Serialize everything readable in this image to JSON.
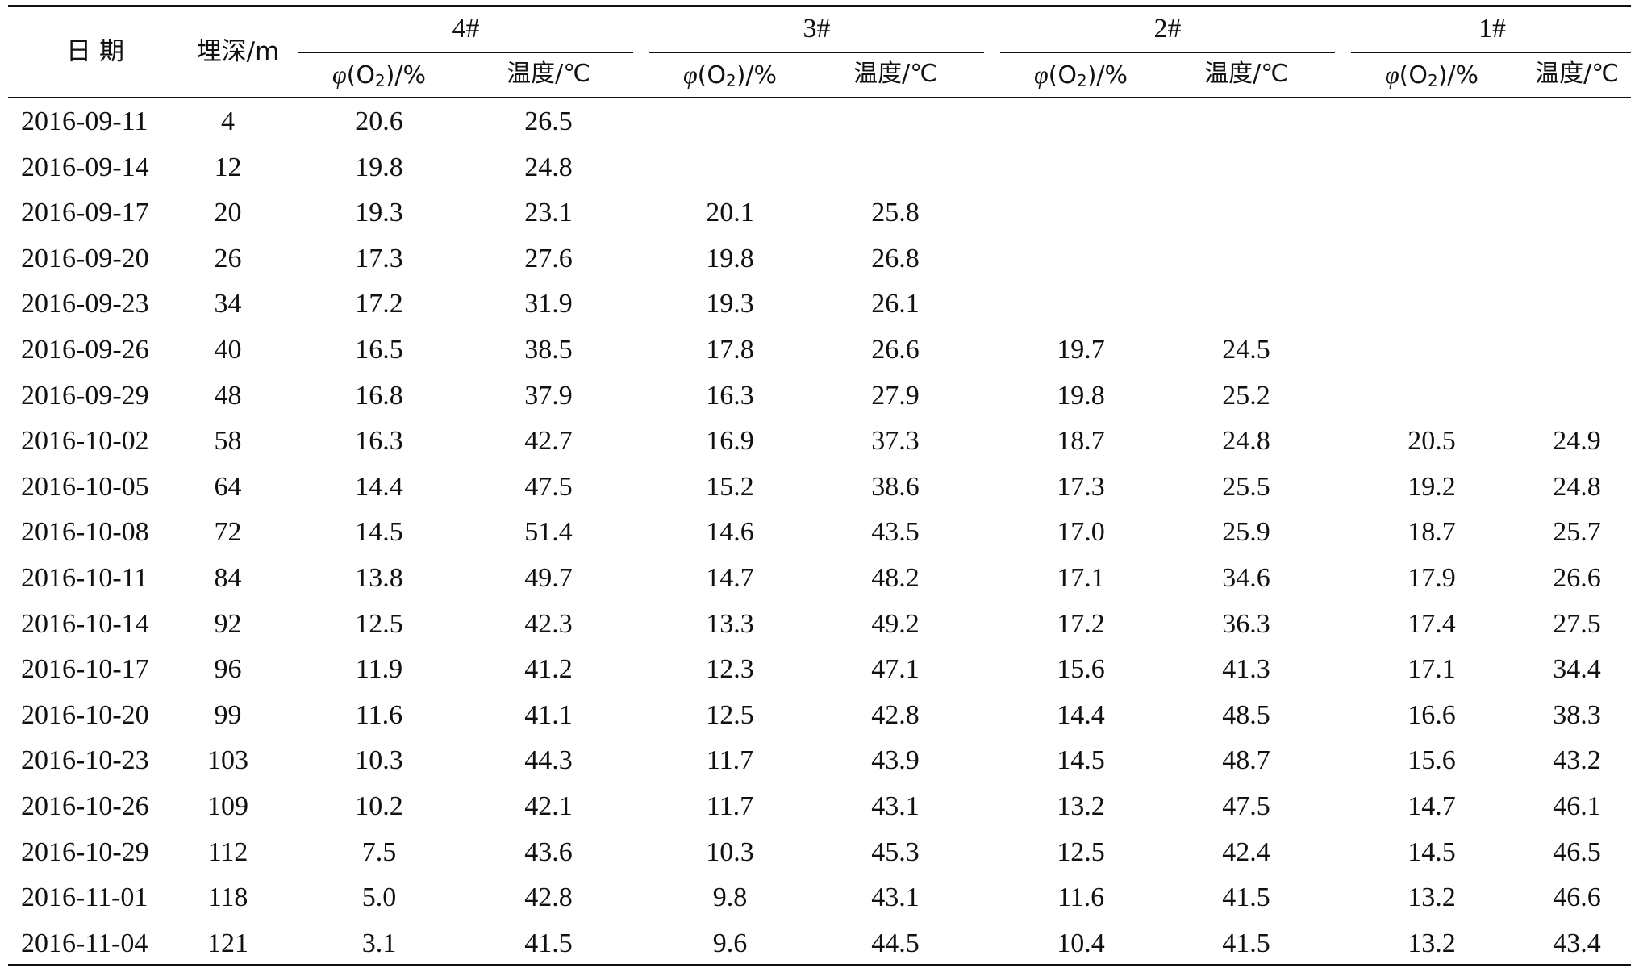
{
  "header": {
    "date_label": "日期",
    "depth_label": "埋深/m",
    "groups": [
      "4#",
      "3#",
      "2#",
      "1#"
    ],
    "o2_var": "φ",
    "o2_open": "(O",
    "o2_sub": "2",
    "o2_close": ")/%",
    "temp_label": "温度/℃"
  },
  "rows": [
    {
      "date": "2016-09-11",
      "depth": "4",
      "vals": [
        "20.6",
        "26.5",
        "",
        "",
        "",
        "",
        "",
        ""
      ]
    },
    {
      "date": "2016-09-14",
      "depth": "12",
      "vals": [
        "19.8",
        "24.8",
        "",
        "",
        "",
        "",
        "",
        ""
      ]
    },
    {
      "date": "2016-09-17",
      "depth": "20",
      "vals": [
        "19.3",
        "23.1",
        "20.1",
        "25.8",
        "",
        "",
        "",
        ""
      ]
    },
    {
      "date": "2016-09-20",
      "depth": "26",
      "vals": [
        "17.3",
        "27.6",
        "19.8",
        "26.8",
        "",
        "",
        "",
        ""
      ]
    },
    {
      "date": "2016-09-23",
      "depth": "34",
      "vals": [
        "17.2",
        "31.9",
        "19.3",
        "26.1",
        "",
        "",
        "",
        ""
      ]
    },
    {
      "date": "2016-09-26",
      "depth": "40",
      "vals": [
        "16.5",
        "38.5",
        "17.8",
        "26.6",
        "19.7",
        "24.5",
        "",
        ""
      ]
    },
    {
      "date": "2016-09-29",
      "depth": "48",
      "vals": [
        "16.8",
        "37.9",
        "16.3",
        "27.9",
        "19.8",
        "25.2",
        "",
        ""
      ]
    },
    {
      "date": "2016-10-02",
      "depth": "58",
      "vals": [
        "16.3",
        "42.7",
        "16.9",
        "37.3",
        "18.7",
        "24.8",
        "20.5",
        "24.9"
      ]
    },
    {
      "date": "2016-10-05",
      "depth": "64",
      "vals": [
        "14.4",
        "47.5",
        "15.2",
        "38.6",
        "17.3",
        "25.5",
        "19.2",
        "24.8"
      ]
    },
    {
      "date": "2016-10-08",
      "depth": "72",
      "vals": [
        "14.5",
        "51.4",
        "14.6",
        "43.5",
        "17.0",
        "25.9",
        "18.7",
        "25.7"
      ]
    },
    {
      "date": "2016-10-11",
      "depth": "84",
      "vals": [
        "13.8",
        "49.7",
        "14.7",
        "48.2",
        "17.1",
        "34.6",
        "17.9",
        "26.6"
      ]
    },
    {
      "date": "2016-10-14",
      "depth": "92",
      "vals": [
        "12.5",
        "42.3",
        "13.3",
        "49.2",
        "17.2",
        "36.3",
        "17.4",
        "27.5"
      ]
    },
    {
      "date": "2016-10-17",
      "depth": "96",
      "vals": [
        "11.9",
        "41.2",
        "12.3",
        "47.1",
        "15.6",
        "41.3",
        "17.1",
        "34.4"
      ]
    },
    {
      "date": "2016-10-20",
      "depth": "99",
      "vals": [
        "11.6",
        "41.1",
        "12.5",
        "42.8",
        "14.4",
        "48.5",
        "16.6",
        "38.3"
      ]
    },
    {
      "date": "2016-10-23",
      "depth": "103",
      "vals": [
        "10.3",
        "44.3",
        "11.7",
        "43.9",
        "14.5",
        "48.7",
        "15.6",
        "43.2"
      ]
    },
    {
      "date": "2016-10-26",
      "depth": "109",
      "vals": [
        "10.2",
        "42.1",
        "11.7",
        "43.1",
        "13.2",
        "47.5",
        "14.7",
        "46.1"
      ]
    },
    {
      "date": "2016-10-29",
      "depth": "112",
      "vals": [
        "7.5",
        "43.6",
        "10.3",
        "45.3",
        "12.5",
        "42.4",
        "14.5",
        "46.5"
      ]
    },
    {
      "date": "2016-11-01",
      "depth": "118",
      "vals": [
        "5.0",
        "42.8",
        "9.8",
        "43.1",
        "11.6",
        "41.5",
        "13.2",
        "46.6"
      ]
    },
    {
      "date": "2016-11-04",
      "depth": "121",
      "vals": [
        "3.1",
        "41.5",
        "9.6",
        "44.5",
        "10.4",
        "41.5",
        "13.2",
        "43.4"
      ]
    }
  ]
}
